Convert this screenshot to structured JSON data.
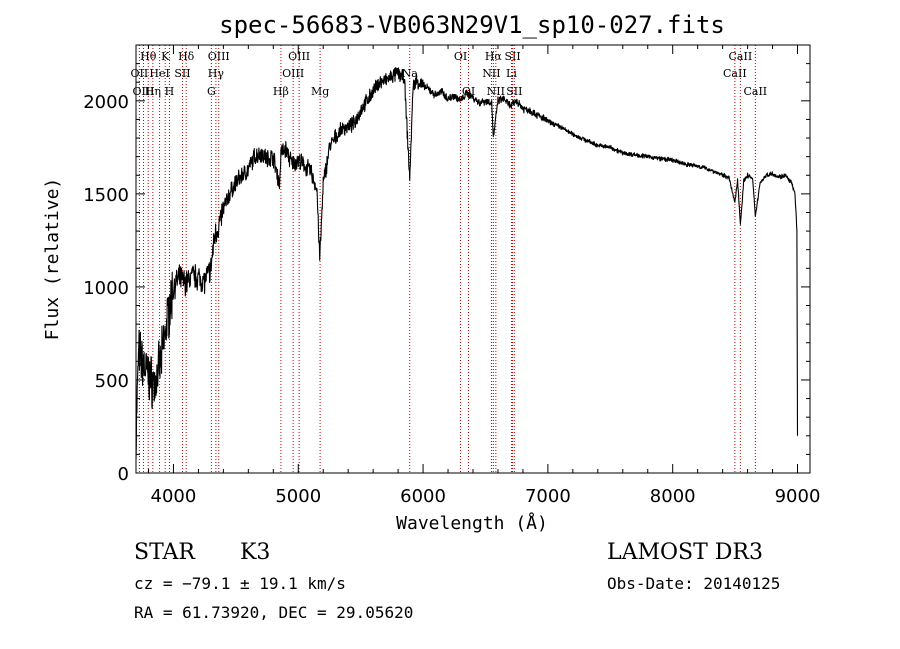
{
  "chart_data": {
    "type": "line",
    "title": "spec-56683-VB063N29V1_sp10-027.fits",
    "xlabel": "Wavelength (Å)",
    "ylabel": "Flux (relative)",
    "xlim": [
      3700,
      9100
    ],
    "ylim": [
      0,
      2300
    ],
    "xticks": [
      4000,
      5000,
      6000,
      7000,
      8000,
      9000
    ],
    "yticks": [
      0,
      500,
      1000,
      1500,
      2000
    ],
    "grid": false,
    "series": [
      {
        "name": "flux",
        "x": [
          3700,
          3720,
          3760,
          3800,
          3850,
          3900,
          3950,
          4000,
          4050,
          4100,
          4150,
          4200,
          4250,
          4300,
          4330,
          4360,
          4400,
          4450,
          4500,
          4550,
          4600,
          4650,
          4700,
          4750,
          4800,
          4850,
          4861,
          4900,
          4950,
          5000,
          5050,
          5100,
          5150,
          5172,
          5183,
          5200,
          5250,
          5300,
          5350,
          5400,
          5450,
          5500,
          5550,
          5600,
          5650,
          5700,
          5750,
          5800,
          5850,
          5893,
          5920,
          5950,
          6000,
          6050,
          6100,
          6150,
          6200,
          6250,
          6300,
          6350,
          6400,
          6450,
          6500,
          6550,
          6563,
          6600,
          6650,
          6700,
          6750,
          6800,
          6850,
          6900,
          6950,
          7000,
          7100,
          7200,
          7300,
          7400,
          7500,
          7600,
          7700,
          7800,
          7900,
          8000,
          8100,
          8200,
          8300,
          8400,
          8450,
          8498,
          8520,
          8542,
          8570,
          8600,
          8640,
          8662,
          8700,
          8750,
          8800,
          8850,
          8900,
          8950,
          8980,
          8995,
          9000
        ],
        "y": [
          150,
          650,
          580,
          520,
          470,
          600,
          820,
          1000,
          1050,
          1020,
          1060,
          1050,
          1030,
          1100,
          1280,
          1320,
          1420,
          1500,
          1560,
          1600,
          1630,
          1700,
          1720,
          1690,
          1700,
          1550,
          1720,
          1740,
          1660,
          1680,
          1650,
          1620,
          1520,
          1150,
          1300,
          1550,
          1750,
          1800,
          1850,
          1860,
          1880,
          1950,
          2000,
          2050,
          2100,
          2110,
          2130,
          2150,
          2120,
          1580,
          2080,
          2110,
          2080,
          2060,
          2030,
          2050,
          2010,
          2030,
          2000,
          2040,
          2020,
          1990,
          2000,
          1990,
          1800,
          2000,
          2010,
          1970,
          2000,
          1960,
          1950,
          1930,
          1910,
          1890,
          1860,
          1820,
          1790,
          1760,
          1750,
          1720,
          1710,
          1700,
          1690,
          1680,
          1660,
          1650,
          1630,
          1600,
          1590,
          1450,
          1580,
          1340,
          1570,
          1600,
          1580,
          1380,
          1560,
          1600,
          1610,
          1590,
          1600,
          1560,
          1500,
          1300,
          200
        ]
      }
    ],
    "lines": [
      {
        "name": "Hθ",
        "x": 3798,
        "row": 0
      },
      {
        "name": "OII",
        "x": 3727,
        "row": 1
      },
      {
        "name": "OIII",
        "x": 3760,
        "row": 2
      },
      {
        "name": "K",
        "x": 3934,
        "row": 0
      },
      {
        "name": "HeI",
        "x": 3889,
        "row": 1
      },
      {
        "name": "Hη",
        "x": 3835,
        "row": 2
      },
      {
        "name": "SII",
        "x": 4072,
        "row": 1
      },
      {
        "name": "H",
        "x": 3968,
        "row": 2
      },
      {
        "name": "Hδ",
        "x": 4102,
        "row": 0
      },
      {
        "name": "OIII",
        "x": 4363,
        "row": 0
      },
      {
        "name": "Hγ",
        "x": 4340,
        "row": 1
      },
      {
        "name": "G",
        "x": 4304,
        "row": 2
      },
      {
        "name": "OIII",
        "x": 5007,
        "row": 0
      },
      {
        "name": "OIII",
        "x": 4959,
        "row": 1
      },
      {
        "name": "Hβ",
        "x": 4861,
        "row": 2
      },
      {
        "name": "Mg",
        "x": 5175,
        "row": 2
      },
      {
        "name": "Na",
        "x": 5893,
        "row": 1
      },
      {
        "name": "OI",
        "x": 6300,
        "row": 0
      },
      {
        "name": "OI",
        "x": 6364,
        "row": 2
      },
      {
        "name": "Hα",
        "x": 6563,
        "row": 0
      },
      {
        "name": "NII",
        "x": 6548,
        "row": 1
      },
      {
        "name": "NII",
        "x": 6583,
        "row": 2
      },
      {
        "name": "SII",
        "x": 6717,
        "row": 0
      },
      {
        "name": "Li",
        "x": 6708,
        "row": 1
      },
      {
        "name": "SII",
        "x": 6731,
        "row": 2
      },
      {
        "name": "CaII",
        "x": 8542,
        "row": 0
      },
      {
        "name": "CaII",
        "x": 8498,
        "row": 1
      },
      {
        "name": "CaII",
        "x": 8662,
        "row": 2
      }
    ]
  },
  "info": {
    "object_class": "STAR",
    "subclass": "K3",
    "survey": "LAMOST DR3",
    "cz": "cz = −79.1 ± 19.1 km/s",
    "obs_date": "Obs-Date: 20140125",
    "coords": "RA =  61.73920, DEC =  29.05620"
  }
}
